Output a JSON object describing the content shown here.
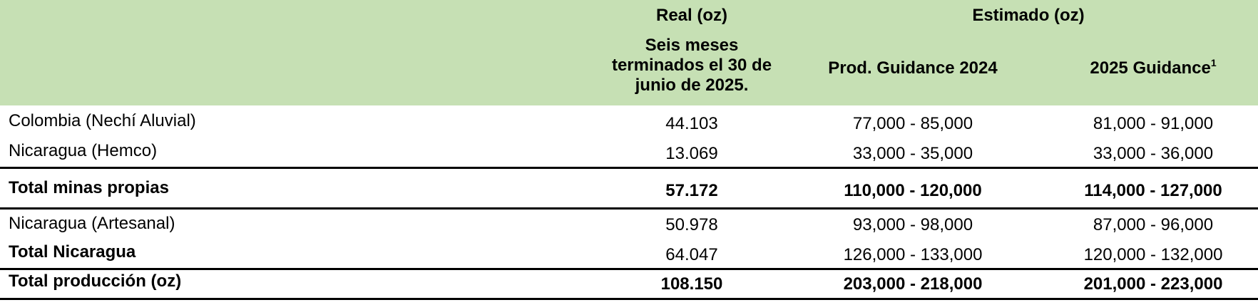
{
  "header": {
    "group_real": "Real (oz)",
    "group_estimado": "Estimado (oz)",
    "col_real": "Seis meses terminados el 30 de junio de 2025.",
    "col_guidance_2024": "Prod. Guidance 2024",
    "col_guidance_2025": "2025 Guidance",
    "col_guidance_2025_sup": "1"
  },
  "rows": [
    {
      "label": "Colombia (Nechí Aluvial)",
      "real": "44.103",
      "g2024": "77,000 - 85,000",
      "g2025": "81,000 - 91,000"
    },
    {
      "label": "Nicaragua (Hemco)",
      "real": "13.069",
      "g2024": "33,000 - 35,000",
      "g2025": "33,000 - 36,000"
    },
    {
      "label": "Total minas propias",
      "real": "57.172",
      "g2024": "110,000 - 120,000",
      "g2025": "114,000 - 127,000"
    },
    {
      "label": "Nicaragua (Artesanal)",
      "real": "50.978",
      "g2024": "93,000 - 98,000",
      "g2025": "87,000 - 96,000"
    },
    {
      "label": "Total Nicaragua",
      "real": "64.047",
      "g2024": "126,000 - 133,000",
      "g2025": "120,000 - 132,000"
    },
    {
      "label": "Total producción (oz)",
      "real": "108.150",
      "g2024": "203,000 - 218,000",
      "g2025": "201,000 - 223,000"
    }
  ]
}
